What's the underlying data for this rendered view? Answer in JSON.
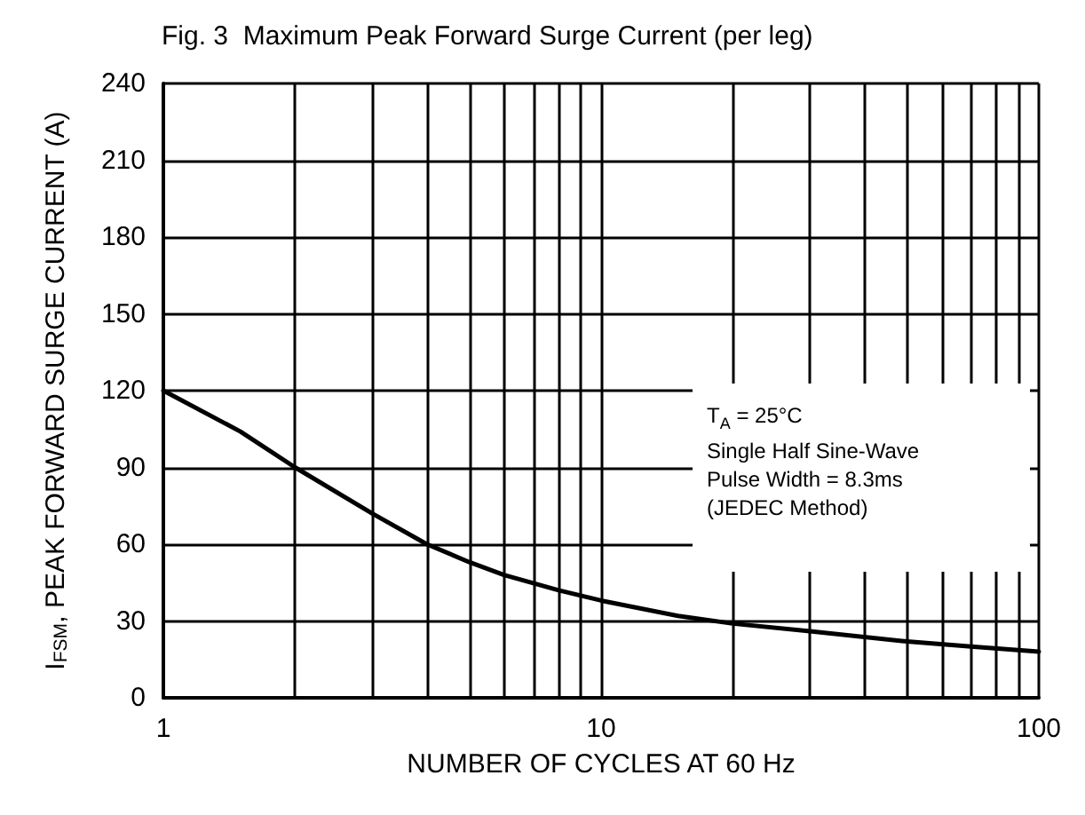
{
  "chart_data": {
    "type": "line",
    "title": "Fig. 3  Maximum Peak Forward Surge Current (per leg)",
    "xlabel": "NUMBER OF CYCLES AT 60 Hz",
    "ylabel": "I$_{FSM}$, PEAK FORWARD SURGE CURRENT (A)",
    "annotations": [
      "T$_{A}$ = 25°C",
      "Single Half Sine-Wave",
      "Pulse Width = 8.3ms",
      "(JEDEC Method)"
    ],
    "series": [
      {
        "color": "#000000",
        "x": [
          1,
          1.5,
          2,
          3,
          4,
          5,
          6,
          8,
          10,
          15,
          20,
          30,
          50,
          70,
          100
        ],
        "values": [
          120,
          104,
          90,
          72,
          60,
          53,
          48,
          42,
          38,
          32,
          29,
          26,
          22,
          20,
          18
        ]
      }
    ],
    "log": "x",
    "xlim": [
      1,
      100
    ],
    "ylim": [
      0,
      240
    ],
    "xticks": [
      1,
      {
        "value": 2,
        "label": null
      },
      {
        "value": 3,
        "label": null
      },
      {
        "value": 4,
        "label": null
      },
      {
        "value": 5,
        "label": null
      },
      {
        "value": 6,
        "label": null
      },
      {
        "value": 7,
        "label": null
      },
      {
        "value": 8,
        "label": null
      },
      {
        "value": 9,
        "label": null
      },
      10,
      {
        "value": 20,
        "label": null
      },
      {
        "value": 30,
        "label": null
      },
      {
        "value": 40,
        "label": null
      },
      {
        "value": 50,
        "label": null
      },
      {
        "value": 60,
        "label": null
      },
      {
        "value": 70,
        "label": null
      },
      {
        "value": 80,
        "label": null
      },
      {
        "value": 90,
        "label": null
      },
      100
    ],
    "yticks": [
      0,
      30,
      60,
      90,
      120,
      150,
      180,
      210,
      240
    ],
    "grid": true,
    "marker": "none",
    "line_style": "solid"
  }
}
